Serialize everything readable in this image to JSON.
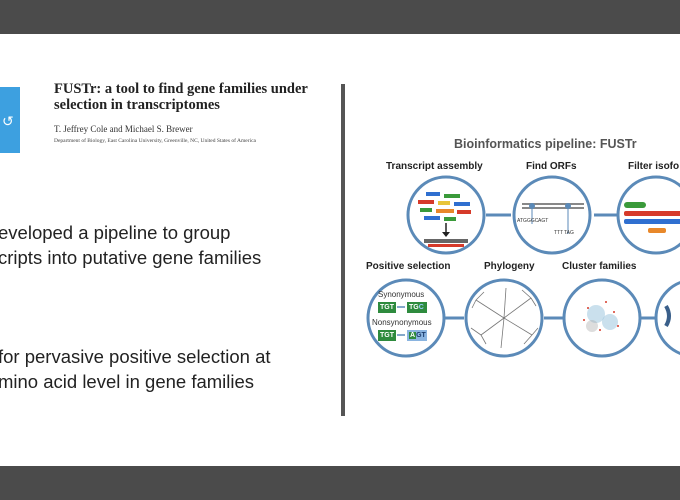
{
  "paper": {
    "title": "FUSTr: a tool to find gene families under selection in transcriptomes",
    "authors": "T. Jeffrey Cole and Michael S. Brewer",
    "affiliation": "Department of Biology, East Carolina University, Greenville, NC, United States of America"
  },
  "bullets": [
    {
      "line1": "eveloped a pipeline to group",
      "line2": "cripts into putative gene families"
    },
    {
      "line1": "for pervasive positive selection at",
      "line2": "mino acid level in gene families"
    }
  ],
  "figure": {
    "title": "Bioinformatics pipeline: FUSTr",
    "stages": {
      "transcript_assembly": "Transcript assembly",
      "find_orfs": "Find ORFs",
      "filter_isoforms": "Filter isofo",
      "positive_selection": "Positive selection",
      "phylogeny": "Phylogeny",
      "cluster_families": "Cluster families"
    },
    "orf_labels": {
      "start": "ATG",
      "mid1": "GGC",
      "mid2": "AGT",
      "end_a": "TTT",
      "end_b": "TAG"
    },
    "selection": {
      "synonymous_label": "Synonymous",
      "nonsynonymous_label": "Nonsynonymous",
      "codon_original": "TGT",
      "codon_synonymous": "TG",
      "codon_synonymous_change": "C",
      "codon_nonsynonymous": "GT",
      "codon_nonsynonymous_change": "A"
    }
  },
  "colors": {
    "circle_stroke": "#5b8ab8",
    "codon_green": "#2e8b3e",
    "codon_blue": "#8ab4e0",
    "isoform_green": "#3a9a3a",
    "isoform_red": "#d63a2a",
    "isoform_blue": "#2f6fd0",
    "isoform_orange": "#e8882a"
  }
}
